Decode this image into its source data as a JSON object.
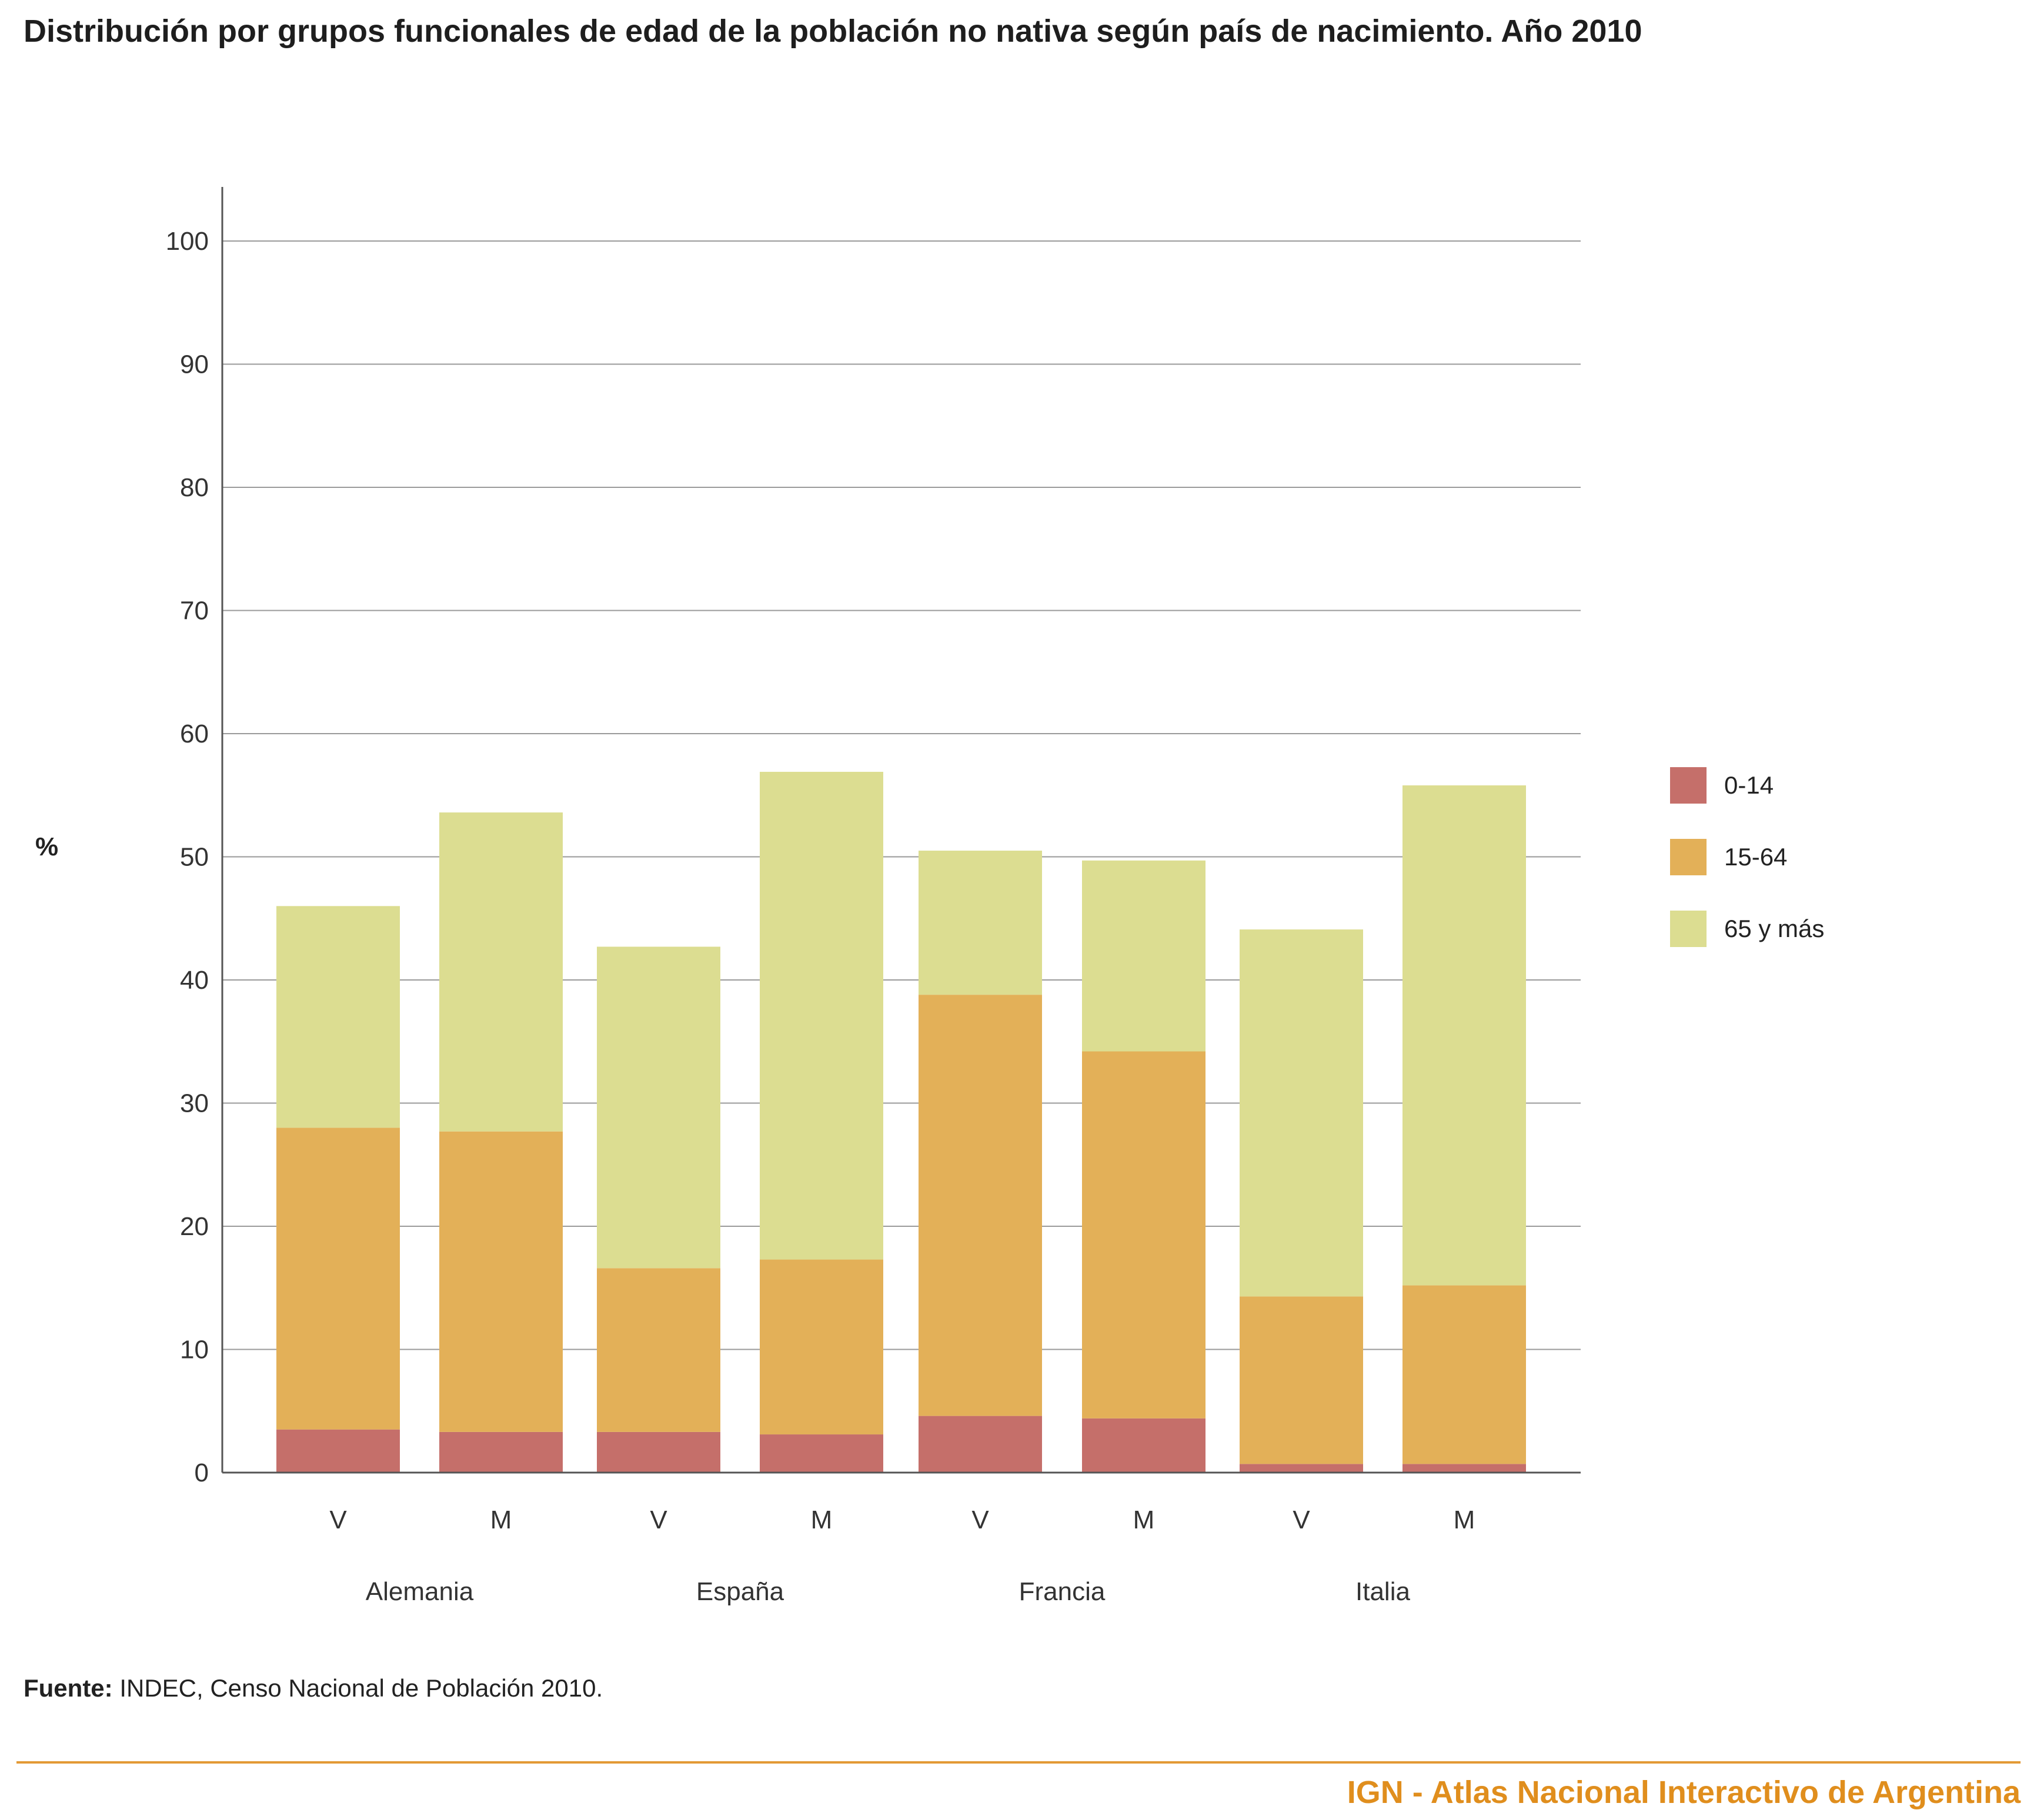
{
  "title": "Distribución por grupos funcionales de edad de la población no nativa según país de nacimiento. Año 2010",
  "source_label": "Fuente:",
  "source_text": " INDEC, Censo Nacional de Población 2010.",
  "footer": "IGN - Atlas Nacional Interactivo de Argentina",
  "colors": {
    "0-14": "#c56f6a",
    "15-64": "#e3b058",
    "65 y más": "#dcdd91",
    "footer_accent": "#e08e1d"
  },
  "chart_data": {
    "type": "bar",
    "stacked": true,
    "ylabel": "%",
    "ylim": [
      0,
      100
    ],
    "yticks": [
      0,
      10,
      20,
      30,
      40,
      50,
      60,
      70,
      80,
      90,
      100
    ],
    "grid": true,
    "legend_position": "right",
    "categories": [
      "V",
      "M",
      "V",
      "M",
      "V",
      "M",
      "V",
      "M"
    ],
    "groups": [
      {
        "name": "Alemania",
        "bars": [
          0,
          1
        ]
      },
      {
        "name": "España",
        "bars": [
          2,
          3
        ]
      },
      {
        "name": "Francia",
        "bars": [
          4,
          5
        ]
      },
      {
        "name": "Italia",
        "bars": [
          6,
          7
        ]
      }
    ],
    "series": [
      {
        "name": "0-14",
        "values": [
          3.5,
          3.3,
          3.3,
          3.1,
          4.6,
          4.4,
          0.7,
          0.7
        ]
      },
      {
        "name": "15-64",
        "values": [
          24.5,
          24.4,
          13.3,
          14.2,
          34.2,
          29.8,
          13.6,
          14.5
        ]
      },
      {
        "name": "65 y más",
        "values": [
          18.0,
          25.9,
          26.1,
          39.6,
          11.7,
          15.5,
          29.8,
          40.6
        ]
      }
    ]
  }
}
